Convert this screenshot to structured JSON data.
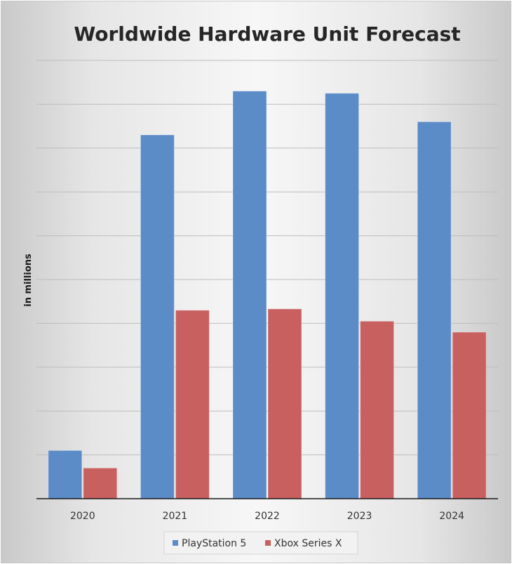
{
  "chart_data": {
    "type": "bar",
    "title": "Worldwide Hardware Unit Forecast",
    "xlabel": "",
    "ylabel": "in millions",
    "categories": [
      "2020",
      "2021",
      "2022",
      "2023",
      "2024"
    ],
    "series": [
      {
        "name": "PlayStation 5",
        "color": "#5b8cc8",
        "values": [
          1.1,
          8.3,
          9.3,
          9.25,
          8.6
        ]
      },
      {
        "name": "Xbox Series X",
        "color": "#c86060",
        "values": [
          0.7,
          4.3,
          4.33,
          4.05,
          3.8
        ]
      }
    ],
    "ylim": [
      0,
      10
    ],
    "y_gridline_step": 1,
    "y_tick_labels_shown": false,
    "grid": true,
    "legend_position": "bottom"
  }
}
